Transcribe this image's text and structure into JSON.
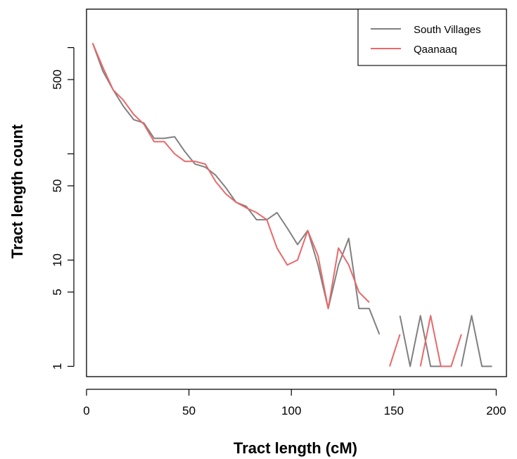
{
  "chart_data": {
    "type": "line",
    "title": "",
    "xlabel": "Tract length (cM)",
    "ylabel": "Tract length count",
    "x_scale": "linear",
    "y_scale": "log",
    "xlim": [
      0,
      205
    ],
    "ylim": [
      0.8,
      2300
    ],
    "x_ticks": [
      0,
      50,
      100,
      150,
      200
    ],
    "y_ticks": [
      1,
      5,
      10,
      50,
      500
    ],
    "y_minor_ticks": [
      100,
      1000
    ],
    "grid": false,
    "legend_position": "top-right",
    "series": [
      {
        "name": "South Villages",
        "color": "#808080",
        "points": [
          [
            3,
            1100
          ],
          [
            8,
            600
          ],
          [
            13,
            400
          ],
          [
            18,
            280
          ],
          [
            23,
            210
          ],
          [
            28,
            195
          ],
          [
            33,
            140
          ],
          [
            38,
            140
          ],
          [
            43,
            145
          ],
          [
            48,
            105
          ],
          [
            53,
            80
          ],
          [
            58,
            75
          ],
          [
            63,
            63
          ],
          [
            68,
            48
          ],
          [
            73,
            35
          ],
          [
            78,
            32
          ],
          [
            83,
            24
          ],
          [
            88,
            24
          ],
          [
            93,
            28
          ],
          [
            98,
            20
          ],
          [
            103,
            14
          ],
          [
            108,
            19
          ],
          [
            113,
            9
          ],
          [
            118,
            3.5
          ],
          [
            123,
            9
          ],
          [
            128,
            16
          ],
          [
            133,
            3.5
          ],
          [
            138,
            3.5
          ],
          [
            143,
            2
          ],
          null,
          [
            153,
            3
          ],
          [
            158,
            1
          ],
          [
            163,
            3
          ],
          [
            168,
            1
          ],
          [
            173,
            1
          ],
          null,
          [
            183,
            1
          ],
          [
            188,
            3
          ],
          [
            193,
            1
          ],
          [
            198,
            1
          ]
        ]
      },
      {
        "name": "Qaanaaq",
        "color": "#e8696b",
        "points": [
          [
            3,
            1100
          ],
          [
            8,
            650
          ],
          [
            13,
            400
          ],
          [
            18,
            320
          ],
          [
            23,
            235
          ],
          [
            28,
            190
          ],
          [
            33,
            130
          ],
          [
            38,
            130
          ],
          [
            43,
            100
          ],
          [
            48,
            85
          ],
          [
            53,
            85
          ],
          [
            58,
            80
          ],
          [
            63,
            55
          ],
          [
            68,
            42
          ],
          [
            73,
            35
          ],
          [
            78,
            31
          ],
          [
            83,
            28
          ],
          [
            88,
            24
          ],
          [
            93,
            13
          ],
          [
            98,
            9
          ],
          [
            103,
            10
          ],
          [
            108,
            19
          ],
          [
            113,
            11
          ],
          [
            118,
            3.5
          ],
          [
            123,
            13
          ],
          [
            128,
            9
          ],
          [
            133,
            5
          ],
          [
            138,
            4
          ],
          null,
          [
            148,
            1
          ],
          [
            153,
            2
          ],
          null,
          [
            163,
            1
          ],
          [
            168,
            3
          ],
          [
            173,
            1
          ],
          [
            178,
            1
          ],
          [
            183,
            2
          ]
        ]
      }
    ]
  }
}
